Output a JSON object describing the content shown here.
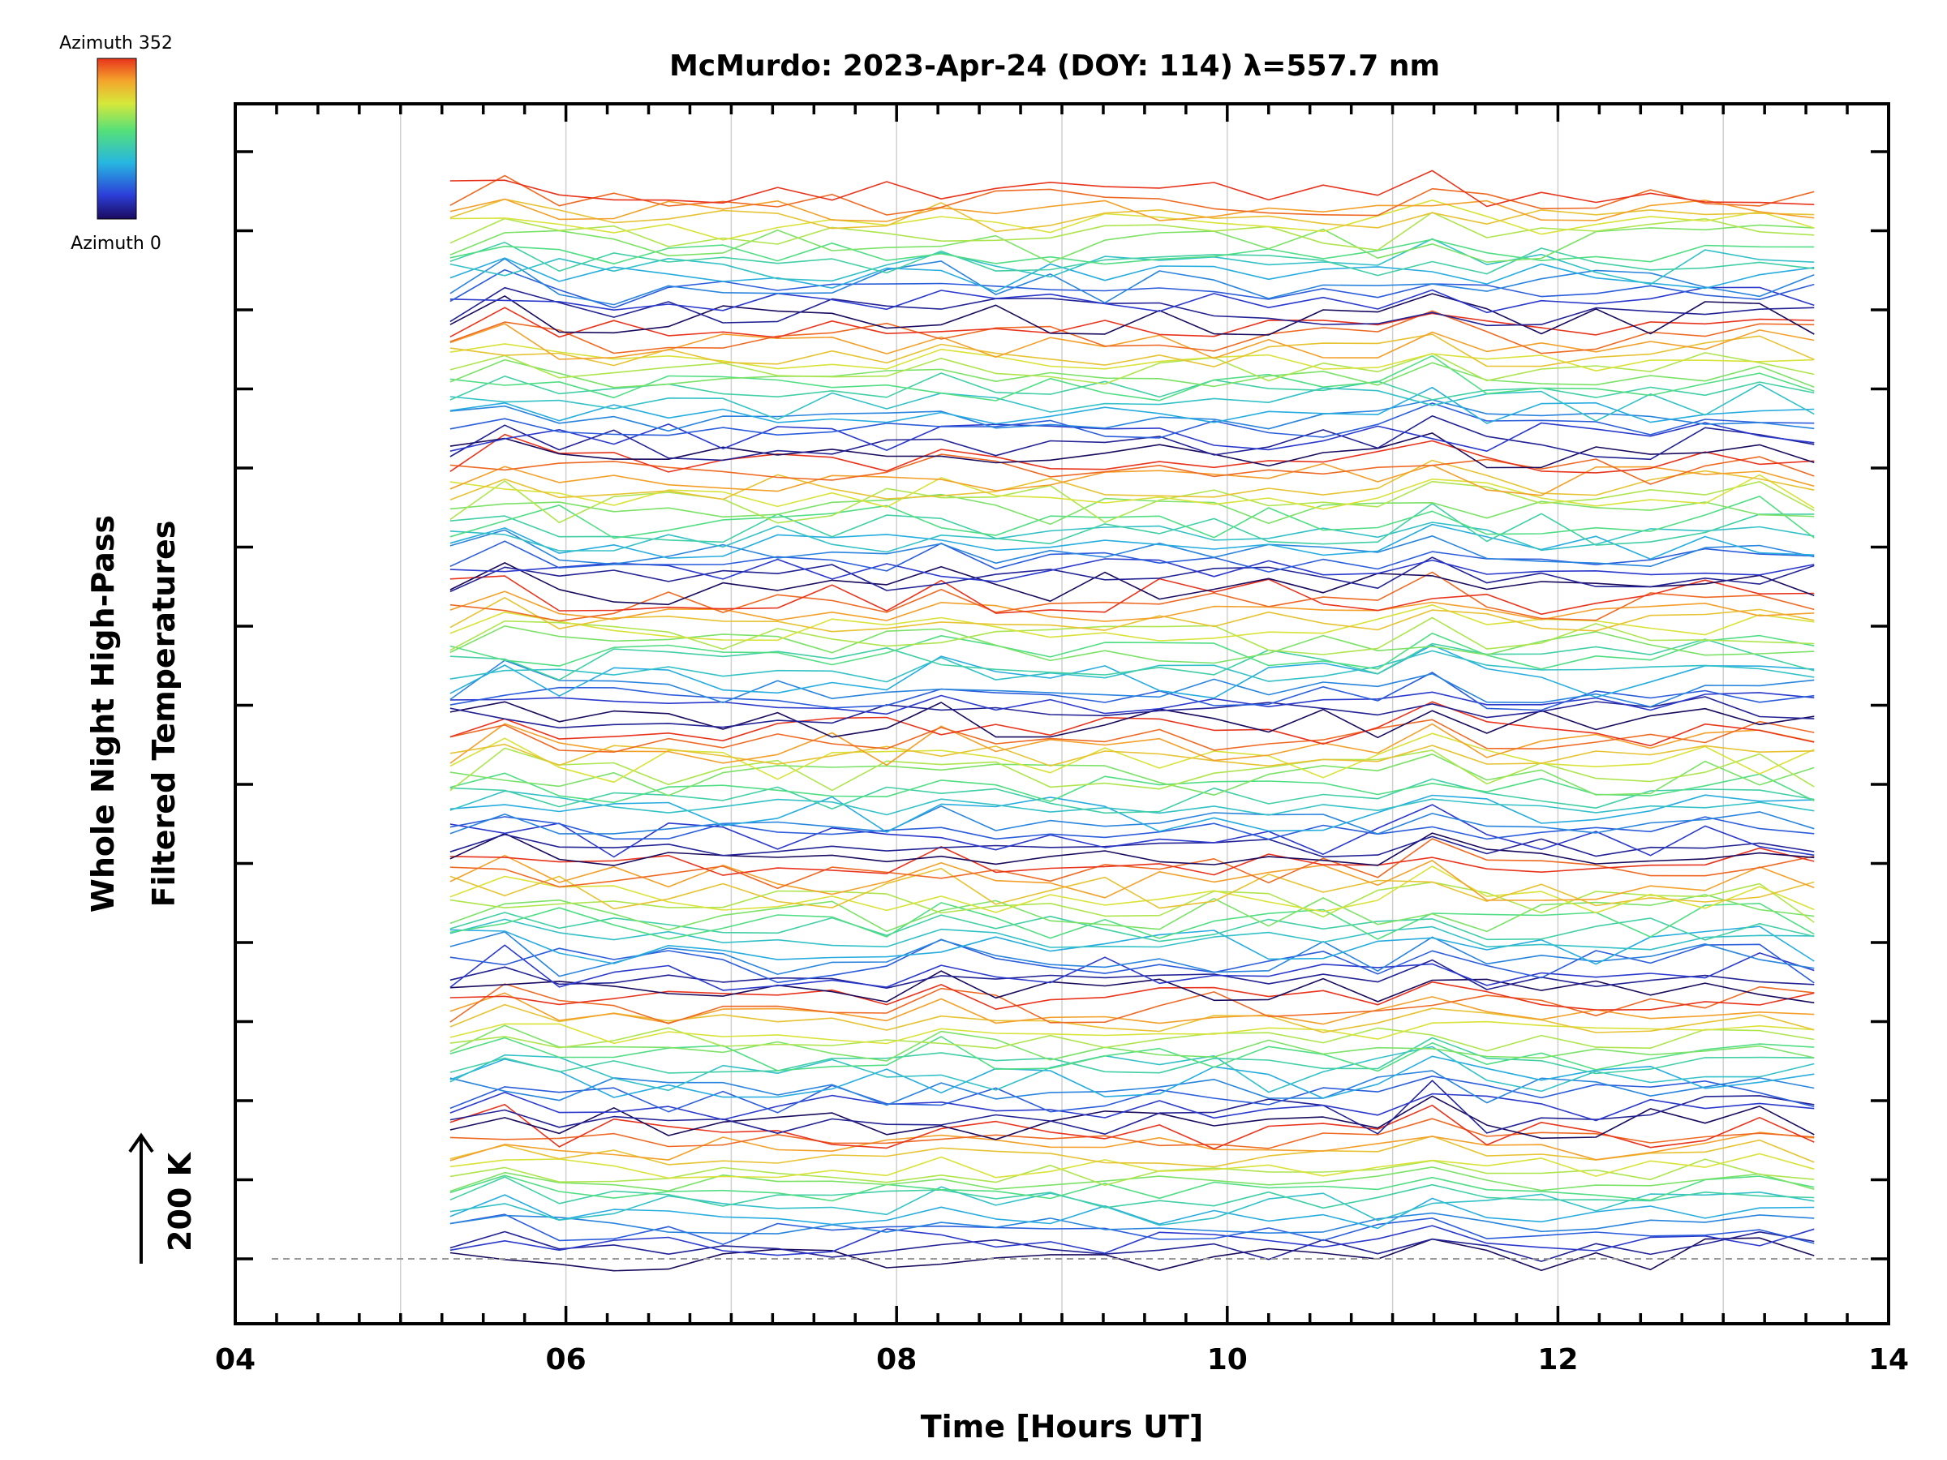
{
  "chart_data": {
    "type": "line",
    "title": "McMurdo: 2023-Apr-24 (DOY: 114) λ=557.7 nm",
    "xlabel": "Time [Hours UT]",
    "ylabel_line1": "Whole Night High-Pass",
    "ylabel_line2": "Filtered Temperatures",
    "scale_label": "200 K",
    "xlim": [
      4,
      14
    ],
    "xticks": [
      "04",
      "06",
      "08",
      "10",
      "12",
      "14"
    ],
    "colorbar": {
      "top_label": "Azimuth 352",
      "bottom_label": "Azimuth 0",
      "min": 0,
      "max": 352
    },
    "series_description": "Stacked high-pass filtered temperature traces, one per azimuth, offset vertically",
    "num_traces": 128,
    "time_start": 5.3,
    "time_end": 13.6,
    "azimuth_step": 22,
    "groups": 8,
    "baseline_dashed": true,
    "gridlines_x": [
      5,
      6,
      7,
      8,
      9,
      10,
      11,
      12,
      13
    ]
  }
}
